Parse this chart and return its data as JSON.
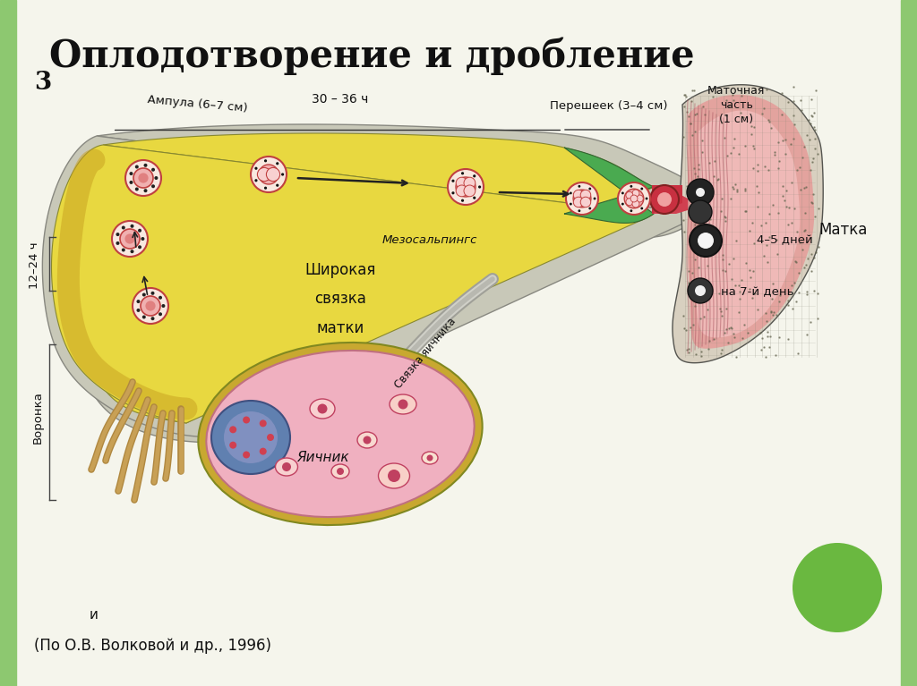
{
  "title": "Оплодотворение и дробление",
  "subtitle": "3",
  "caption": "(По О.В. Волковой и др., 1996)",
  "bg_color": "#f5f5ec",
  "border_color": "#8dc870",
  "green_circle_color": "#6ab840",
  "labels": {
    "ampula": "Ампула (6–7 см)",
    "time1": "30 – 36 ч",
    "peresheek": "Перешеек (3–4 см)",
    "matoch": "Маточная\nчасть\n(1 см)",
    "mezosalpings": "Мезосальпингс",
    "shirokaya": "Широкая",
    "svyazka": "связка",
    "matki": "матки",
    "svyazka_yachnika": "Связка яичника",
    "voronka": "Воронка",
    "yachnik": "Яичник",
    "matka": "Матка",
    "days45": "4–5 дней",
    "day7": "на 7-й день",
    "time2": "12–24 ч",
    "i": "и"
  }
}
